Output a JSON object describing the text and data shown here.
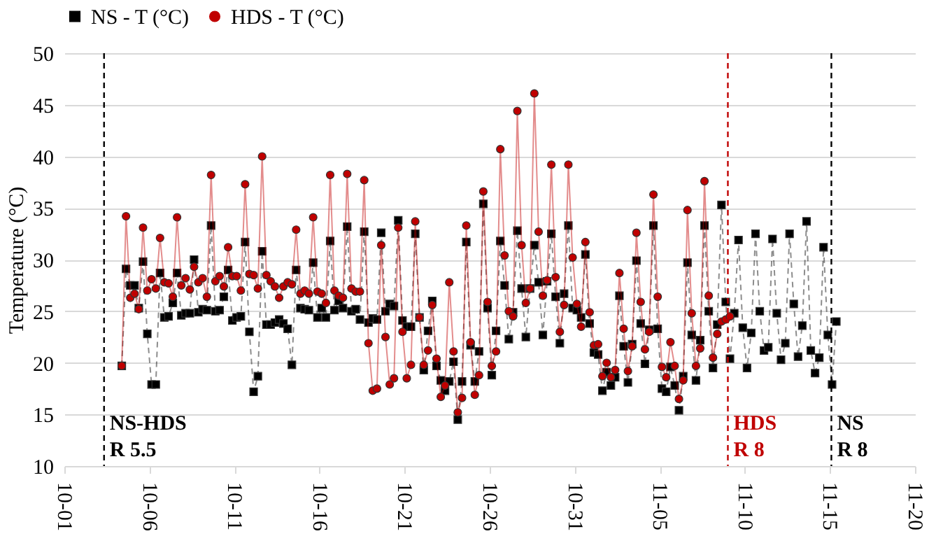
{
  "chart_data": {
    "type": "line",
    "ylabel": "Temperature (°C)",
    "x": [
      "--10-04T09:00",
      "--10-04T15:00",
      "--10-04T21:00",
      "--10-05T03:00",
      "--10-05T09:00",
      "--10-05T15:00",
      "--10-05T21:00",
      "--10-06T03:00",
      "--10-06T09:00",
      "--10-06T15:00",
      "--10-06T21:00",
      "--10-07T03:00",
      "--10-07T09:00",
      "--10-07T15:00",
      "--10-07T21:00",
      "--10-08T03:00",
      "--10-08T09:00",
      "--10-08T15:00",
      "--10-08T21:00",
      "--10-09T03:00",
      "--10-09T09:00",
      "--10-09T15:00",
      "--10-09T21:00",
      "--10-10T03:00",
      "--10-10T09:00",
      "--10-10T15:00",
      "--10-10T21:00",
      "--10-11T03:00",
      "--10-11T09:00",
      "--10-11T15:00",
      "--10-11T21:00",
      "--10-12T03:00",
      "--10-12T09:00",
      "--10-12T15:00",
      "--10-12T21:00",
      "--10-13T03:00",
      "--10-13T09:00",
      "--10-13T15:00",
      "--10-13T21:00",
      "--10-14T03:00",
      "--10-14T09:00",
      "--10-14T15:00",
      "--10-14T21:00",
      "--10-15T03:00",
      "--10-15T09:00",
      "--10-15T15:00",
      "--10-15T21:00",
      "--10-16T03:00",
      "--10-16T09:00",
      "--10-16T15:00",
      "--10-16T21:00",
      "--10-17T03:00",
      "--10-17T09:00",
      "--10-17T15:00",
      "--10-17T21:00",
      "--10-18T03:00",
      "--10-18T09:00",
      "--10-18T15:00",
      "--10-18T21:00",
      "--10-19T03:00",
      "--10-19T09:00",
      "--10-19T15:00",
      "--10-19T21:00",
      "--10-20T03:00",
      "--10-20T09:00",
      "--10-20T15:00",
      "--10-20T21:00",
      "--10-21T03:00",
      "--10-21T09:00",
      "--10-21T15:00",
      "--10-21T21:00",
      "--10-22T03:00",
      "--10-22T09:00",
      "--10-22T15:00",
      "--10-22T21:00",
      "--10-23T03:00",
      "--10-23T09:00",
      "--10-23T15:00",
      "--10-23T21:00",
      "--10-24T03:00",
      "--10-24T09:00",
      "--10-24T15:00",
      "--10-24T21:00",
      "--10-25T03:00",
      "--10-25T09:00",
      "--10-25T15:00",
      "--10-25T21:00",
      "--10-26T03:00",
      "--10-26T09:00",
      "--10-26T15:00",
      "--10-26T21:00",
      "--10-27T03:00",
      "--10-27T09:00",
      "--10-27T15:00",
      "--10-27T21:00",
      "--10-28T03:00",
      "--10-28T09:00",
      "--10-28T15:00",
      "--10-28T21:00",
      "--10-29T03:00",
      "--10-29T09:00",
      "--10-29T15:00",
      "--10-29T21:00",
      "--10-30T03:00",
      "--10-30T09:00",
      "--10-30T15:00",
      "--10-30T21:00",
      "--10-31T03:00",
      "--10-31T09:00",
      "--10-31T15:00",
      "--10-31T21:00",
      "--11-01T03:00",
      "--11-01T09:00",
      "--11-01T15:00",
      "--11-01T21:00",
      "--11-02T03:00",
      "--11-02T09:00",
      "--11-02T15:00",
      "--11-02T21:00",
      "--11-03T03:00",
      "--11-03T09:00",
      "--11-03T15:00",
      "--11-03T21:00",
      "--11-04T03:00",
      "--11-04T09:00",
      "--11-04T15:00",
      "--11-04T21:00",
      "--11-05T03:00",
      "--11-05T09:00",
      "--11-05T15:00",
      "--11-05T21:00",
      "--11-06T03:00",
      "--11-06T09:00",
      "--11-06T15:00",
      "--11-06T21:00",
      "--11-07T03:00",
      "--11-07T09:00",
      "--11-07T15:00",
      "--11-07T21:00",
      "--11-08T03:00",
      "--11-08T09:00",
      "--11-08T15:00",
      "--11-08T21:00",
      "--11-09T03:00",
      "--11-09T09:00",
      "--11-09T15:00",
      "--11-09T21:00",
      "--11-10T03:00",
      "--11-10T09:00",
      "--11-10T15:00",
      "--11-10T21:00",
      "--11-11T03:00",
      "--11-11T09:00",
      "--11-11T15:00",
      "--11-11T21:00",
      "--11-12T03:00",
      "--11-12T09:00",
      "--11-12T15:00",
      "--11-12T21:00",
      "--11-13T03:00",
      "--11-13T09:00",
      "--11-13T15:00",
      "--11-13T21:00",
      "--11-14T03:00",
      "--11-14T09:00",
      "--11-14T15:00",
      "--11-14T21:00",
      "--11-15T03:00",
      "--11-15T09:00"
    ],
    "series": [
      {
        "name": "NS - T (°C)",
        "color": "#000000",
        "marker": "square",
        "line_style": "dashed",
        "values": [
          19.7,
          29.1,
          27.5,
          27.5,
          25.3,
          29.8,
          22.8,
          17.9,
          17.9,
          28.7,
          24.4,
          24.5,
          25.8,
          28.7,
          24.6,
          24.8,
          24.8,
          30.0,
          24.9,
          25.2,
          25.1,
          33.3,
          25.0,
          25.1,
          26.4,
          29.0,
          24.1,
          24.4,
          24.5,
          31.7,
          23.0,
          17.2,
          18.7,
          30.8,
          23.7,
          23.7,
          23.9,
          24.2,
          23.8,
          23.3,
          19.8,
          29.0,
          25.3,
          25.2,
          25.1,
          29.7,
          24.4,
          25.3,
          24.4,
          31.8,
          25.1,
          26.0,
          25.3,
          33.2,
          25.0,
          25.2,
          24.2,
          32.7,
          23.9,
          24.3,
          24.2,
          32.6,
          25.0,
          25.7,
          25.5,
          33.8,
          24.1,
          23.5,
          23.5,
          32.5,
          24.4,
          19.3,
          23.1,
          26.0,
          19.7,
          18.3,
          17.3,
          18.2,
          20.1,
          14.5,
          18.2,
          31.7,
          21.7,
          18.2,
          21.1,
          35.4,
          25.3,
          18.8,
          23.1,
          31.8,
          27.5,
          22.3,
          24.9,
          32.8,
          27.2,
          22.5,
          27.2,
          31.4,
          27.8,
          22.7,
          27.9,
          32.5,
          26.4,
          21.9,
          26.7,
          33.3,
          25.3,
          25.1,
          24.4,
          30.5,
          23.8,
          21.0,
          20.8,
          17.3,
          19.1,
          17.8,
          18.6,
          26.5,
          21.6,
          18.1,
          21.8,
          29.9,
          23.8,
          19.9,
          23.2,
          33.3,
          23.3,
          17.5,
          17.2,
          19.6,
          17.8,
          15.4,
          18.7,
          29.7,
          22.7,
          18.3,
          22.2,
          33.3,
          25.0,
          19.5,
          23.7,
          35.3,
          25.9,
          20.4,
          24.8,
          31.9,
          23.4,
          19.5,
          22.9,
          32.5,
          25.0,
          21.2,
          21.5,
          32.0,
          24.8,
          20.3,
          21.9,
          32.5,
          25.7,
          20.6,
          23.6,
          33.7,
          21.2,
          19.0,
          20.5,
          31.2,
          22.7,
          17.9,
          24.0
        ]
      },
      {
        "name": "HDS - T (°C)",
        "color": "#c00000",
        "marker": "circle",
        "line_style": "solid",
        "values": [
          19.7,
          34.2,
          26.3,
          26.7,
          25.2,
          33.1,
          27.0,
          28.1,
          27.2,
          32.1,
          27.8,
          27.7,
          26.4,
          34.1,
          27.5,
          28.2,
          27.1,
          29.3,
          27.8,
          28.2,
          26.4,
          38.2,
          27.9,
          28.4,
          27.4,
          31.2,
          28.4,
          28.4,
          27.0,
          37.3,
          28.6,
          28.5,
          27.2,
          40.0,
          28.5,
          27.9,
          27.4,
          26.3,
          27.4,
          27.8,
          27.6,
          32.9,
          26.7,
          27.0,
          26.7,
          34.1,
          26.9,
          26.7,
          25.8,
          38.2,
          27.0,
          26.5,
          26.3,
          38.3,
          27.2,
          26.9,
          26.9,
          37.7,
          21.9,
          17.3,
          17.5,
          31.4,
          22.5,
          17.9,
          18.5,
          33.1,
          23.0,
          18.5,
          19.8,
          33.7,
          24.4,
          19.8,
          21.2,
          25.6,
          20.4,
          16.7,
          17.8,
          27.8,
          21.1,
          15.2,
          16.6,
          33.3,
          22.0,
          16.9,
          18.8,
          36.6,
          25.9,
          19.7,
          21.1,
          40.7,
          30.4,
          25.0,
          24.5,
          44.4,
          31.4,
          25.8,
          27.2,
          46.1,
          32.7,
          26.5,
          28.0,
          39.2,
          28.3,
          23.0,
          25.6,
          39.2,
          30.2,
          25.7,
          23.5,
          31.7,
          24.9,
          21.7,
          21.8,
          18.7,
          20.0,
          18.6,
          19.3,
          28.7,
          23.3,
          19.2,
          21.6,
          32.6,
          25.9,
          21.3,
          23.0,
          36.3,
          26.4,
          19.6,
          18.6,
          22.0,
          19.7,
          16.5,
          18.3,
          34.8,
          24.8,
          19.7,
          21.4,
          37.6,
          26.5,
          20.5,
          22.8,
          24.0,
          24.2,
          24.5,
          null,
          null,
          null,
          null,
          null,
          null,
          null,
          null,
          null,
          null,
          null,
          null,
          null,
          null,
          null,
          null,
          null,
          null,
          null,
          null,
          null,
          null,
          null,
          null,
          null
        ]
      }
    ],
    "xlim": [
      "--10-01",
      "--11-20"
    ],
    "xticks": [
      {
        "value": "--10-01",
        "label": "10-01"
      },
      {
        "value": "--10-06",
        "label": "10-06"
      },
      {
        "value": "--10-11",
        "label": "10-11"
      },
      {
        "value": "--10-16",
        "label": "10-16"
      },
      {
        "value": "--10-21",
        "label": "10-21"
      },
      {
        "value": "--10-26",
        "label": "10-26"
      },
      {
        "value": "--10-31",
        "label": "10-31"
      },
      {
        "value": "--11-05",
        "label": "11-05"
      },
      {
        "value": "--11-10",
        "label": "11-10"
      },
      {
        "value": "--11-15",
        "label": "11-15"
      },
      {
        "value": "--11-20",
        "label": "11-20"
      }
    ],
    "ylim": [
      10,
      50
    ],
    "yticks": [
      10,
      15,
      20,
      25,
      30,
      35,
      40,
      45,
      50
    ],
    "grid": "y",
    "legend": "top",
    "ref_lines": [
      {
        "axis": "x",
        "value": "--10-03T08:00",
        "label": "NS-HDS\nR 5.5",
        "color": "#000000",
        "line_style": "dashed"
      },
      {
        "axis": "x",
        "value": "--11-09T00:00",
        "label": "HDS\nR 8",
        "color": "#c00000",
        "line_style": "dashed"
      },
      {
        "axis": "x",
        "value": "--11-15T02:00",
        "label": "NS\nR 8",
        "color": "#000000",
        "line_style": "dashed"
      }
    ]
  }
}
